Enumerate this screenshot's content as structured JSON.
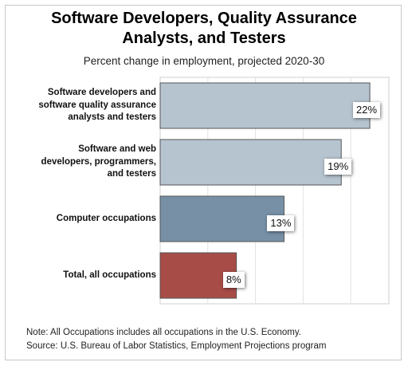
{
  "chart_data": {
    "type": "bar",
    "orientation": "horizontal",
    "title_lines": [
      "Software Developers, Quality Assurance",
      "Analysts, and Testers"
    ],
    "subtitle": "Percent change in employment, projected 2020-30",
    "categories": [
      [
        "Software developers and",
        "software quality assurance",
        "analysts and testers"
      ],
      [
        "Software and web",
        "developers, programmers,",
        "and testers"
      ],
      [
        "Computer occupations"
      ],
      [
        "Total, all occupations"
      ]
    ],
    "values": [
      22,
      19,
      13,
      8
    ],
    "value_labels": [
      "22%",
      "19%",
      "13%",
      "8%"
    ],
    "colors": [
      "#b6c4d0",
      "#b6c4d0",
      "#7790a6",
      "#a84c48"
    ],
    "xlim": [
      0,
      24
    ],
    "grid": true
  },
  "notes": [
    "Note: All Occupations includes all occupations in the U.S. Economy.",
    "Source: U.S. Bureau of Labor Statistics, Employment Projections program"
  ]
}
